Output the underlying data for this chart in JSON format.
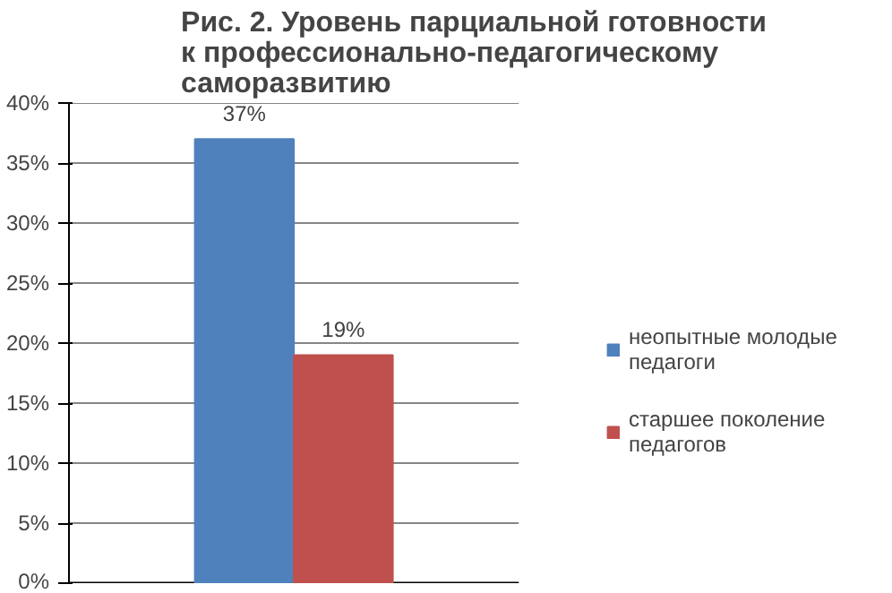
{
  "chart_data": {
    "type": "bar",
    "title": "Рис. 2. Уровень парциальной готовности\nк профессионально-педагогическому\nсаморазвитию",
    "categories": [
      null
    ],
    "series": [
      {
        "name": "неопытные молодые педагоги",
        "color": "#4f81bd",
        "values": [
          37
        ],
        "value_labels": [
          "37%"
        ]
      },
      {
        "name": "старшее поколение педагогов",
        "color": "#c0504d",
        "values": [
          19
        ],
        "value_labels": [
          "19%"
        ]
      }
    ],
    "ylim": [
      0,
      40
    ],
    "yticks": [
      {
        "value": 0,
        "label": "0%"
      },
      {
        "value": 5,
        "label": "5%"
      },
      {
        "value": 10,
        "label": "10%"
      },
      {
        "value": 15,
        "label": "15%"
      },
      {
        "value": 20,
        "label": "20%"
      },
      {
        "value": 25,
        "label": "25%"
      },
      {
        "value": 30,
        "label": "30%"
      },
      {
        "value": 35,
        "label": "35%"
      },
      {
        "value": 40,
        "label": "40%"
      }
    ],
    "grid": "y",
    "legend": "right"
  }
}
